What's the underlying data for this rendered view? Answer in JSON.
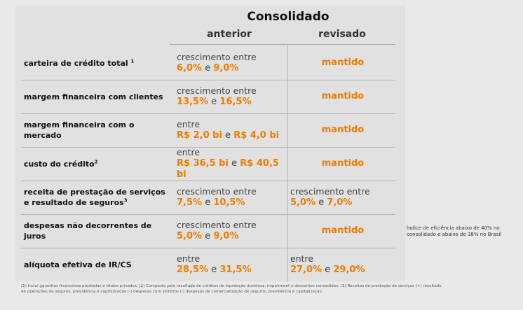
{
  "header": {
    "title": "Consolidado",
    "col_prev": "anterior",
    "col_rev": "revisado"
  },
  "rows": [
    {
      "label": "carteira de crédito total",
      "sup": "1",
      "prev": {
        "pre": "crescimento entre",
        "v1": "6,0%",
        "sep": "e",
        "v2": "9,0%"
      },
      "rev": {
        "text": "mantido"
      }
    },
    {
      "label": "margem financeira com clientes",
      "sup": "",
      "prev": {
        "pre": "crescimento entre",
        "v1": "13,5%",
        "sep": "e",
        "v2": "16,5%"
      },
      "rev": {
        "text": "mantido"
      }
    },
    {
      "label": "margem financeira com o mercado",
      "sup": "",
      "prev": {
        "pre": "entre",
        "v1": "R$ 2,0 bi",
        "sep": "e",
        "v2": "R$ 4,0 bi"
      },
      "rev": {
        "text": "mantido"
      }
    },
    {
      "label": "custo do crédito",
      "sup": "2",
      "prev": {
        "pre": "entre",
        "v1": "R$ 36,5 bi",
        "sep": "e",
        "v2": "R$ 40,5 bi"
      },
      "rev": {
        "text": "mantido"
      }
    },
    {
      "label_l1": "receita de prestação de serviços",
      "label_l2": "e resultado de seguros",
      "sup": "3",
      "prev": {
        "pre": "crescimento entre",
        "v1": "7,5%",
        "sep": "e",
        "v2": "10,5%"
      },
      "rev": {
        "pre": "crescimento entre",
        "v1": "5,0%",
        "sep": "e",
        "v2": "7,0%"
      }
    },
    {
      "label": "despesas não decorrentes de juros",
      "sup": "",
      "prev": {
        "pre": "crescimento entre",
        "v1": "5,0%",
        "sep": "e",
        "v2": "9,0%"
      },
      "rev": {
        "text": "mantido"
      }
    },
    {
      "label": "alíquota efetiva de IR/CS",
      "sup": "",
      "prev": {
        "pre": "entre",
        "v1": "28,5%",
        "sep": "e",
        "v2": "31,5%"
      },
      "rev": {
        "pre": "entre",
        "v1": "27,0%",
        "sep": "e",
        "v2": "29,0%"
      }
    }
  ],
  "sidenote": "Índice de eficiência abaixo de 40% no consolidado e abaixo de 38% no Brasil",
  "footnote": "(1) Inclui garantias financeiras prestadas e títulos privados; (2) Composto pelo resultado de créditos de liquidação duvidosa, impairment e descontos concedidos; (3) Receitas de prestação de serviços (+) resultado de operações de seguros, previdência e capitalização (-) despesas com sinistros (-) despesas de comercialização de seguros, previdência e capitalização.",
  "colors": {
    "accent": "#f07c00",
    "background": "#e1e1e1"
  }
}
